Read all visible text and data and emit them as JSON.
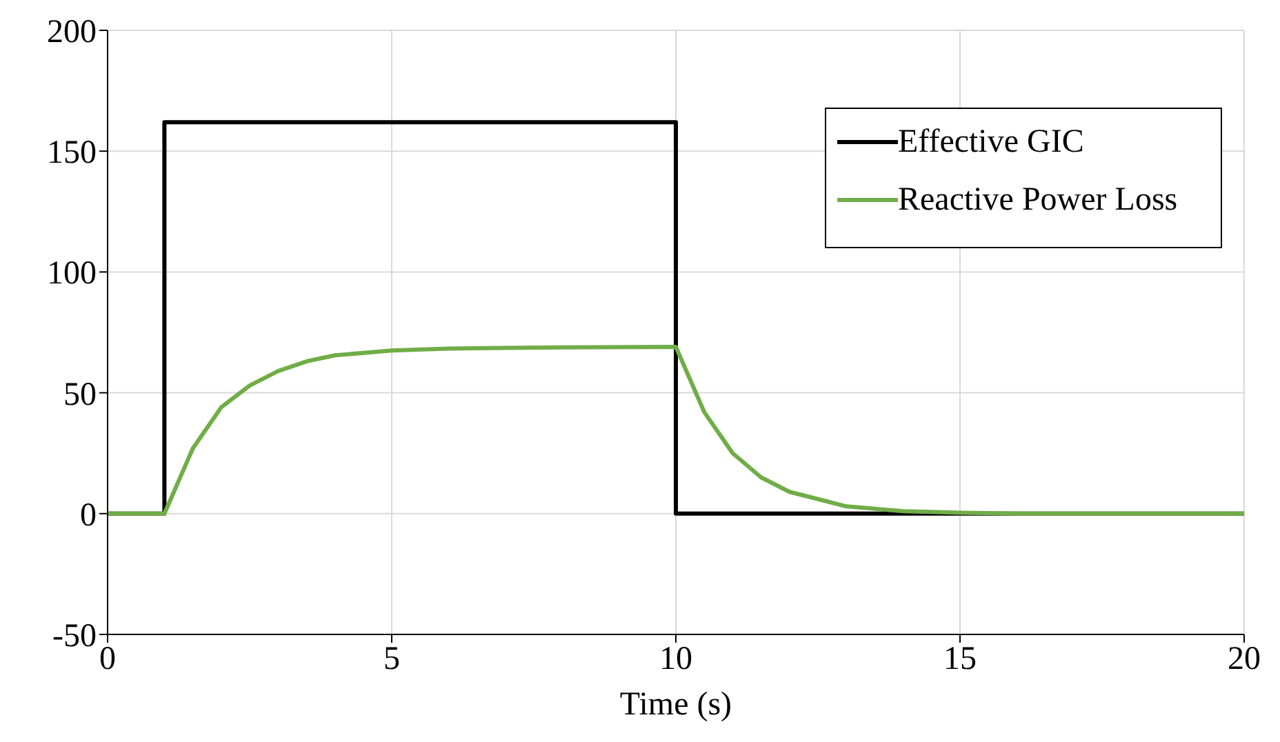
{
  "chart_data": {
    "type": "line",
    "xlabel": "Time (s)",
    "xlim": [
      0,
      20
    ],
    "xticks": [
      0,
      5,
      10,
      15,
      20
    ],
    "ylim": [
      -50,
      200
    ],
    "yticks": [
      -50,
      0,
      50,
      100,
      150,
      200
    ],
    "grid": true,
    "legend": "top right",
    "marker": "none",
    "line_style": "solid",
    "series": [
      {
        "name": "Effective GIC",
        "color": "#000000",
        "x": [
          0,
          1,
          1,
          10,
          10,
          20
        ],
        "values": [
          0,
          0,
          162,
          162,
          0,
          0
        ]
      },
      {
        "name": "Reactive Power Loss",
        "color": "#70ad47",
        "x": [
          0,
          1,
          1.5,
          2,
          2.5,
          3,
          3.5,
          4,
          5,
          6,
          7,
          8,
          10,
          10.5,
          11,
          11.5,
          12,
          12.5,
          13,
          14,
          15,
          16,
          20
        ],
        "values": [
          0,
          0,
          27,
          44,
          53,
          59,
          63,
          65.5,
          67.5,
          68.3,
          68.6,
          68.8,
          69,
          42,
          25,
          15,
          9,
          6,
          3,
          1,
          0.4,
          0,
          0
        ]
      }
    ]
  }
}
